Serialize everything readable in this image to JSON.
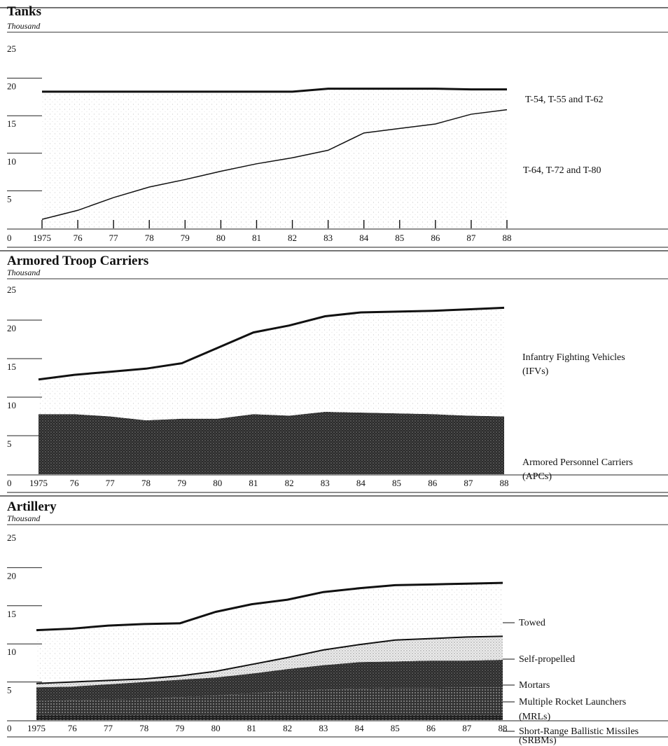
{
  "chart_data": [
    {
      "type": "area",
      "title": "Tanks",
      "unit": "Thousand",
      "x": [
        "1975",
        "76",
        "77",
        "78",
        "79",
        "80",
        "81",
        "82",
        "83",
        "84",
        "85",
        "86",
        "87",
        "88"
      ],
      "y_ticks": [
        "0",
        "5",
        "10",
        "15",
        "20",
        "25"
      ],
      "ylim": [
        0,
        25
      ],
      "series": [
        {
          "name": "T-64, T-72 and T-80",
          "stack_top": [
            1.2,
            2.4,
            4.1,
            5.5,
            6.5,
            7.6,
            8.6,
            9.4,
            10.4,
            12.7,
            13.3,
            13.9,
            15.2,
            15.8
          ]
        },
        {
          "name": "T-54, T-55 and T-62",
          "stack_top": [
            18.2,
            18.2,
            18.2,
            18.2,
            18.2,
            18.2,
            18.2,
            18.2,
            18.6,
            18.6,
            18.6,
            18.6,
            18.5,
            18.5
          ]
        }
      ]
    },
    {
      "type": "area",
      "title": "Armored Troop Carriers",
      "unit": "Thousand",
      "x": [
        "1975",
        "76",
        "77",
        "78",
        "79",
        "80",
        "81",
        "82",
        "83",
        "84",
        "85",
        "86",
        "87",
        "88"
      ],
      "y_ticks": [
        "0",
        "5",
        "10",
        "15",
        "20",
        "25"
      ],
      "ylim": [
        0,
        25
      ],
      "series": [
        {
          "name": "Armored Personnel Carriers (APCs)",
          "stack_top": [
            7.8,
            7.8,
            7.5,
            7.0,
            7.2,
            7.2,
            7.8,
            7.6,
            8.1,
            8.0,
            7.9,
            7.8,
            7.6,
            7.5
          ]
        },
        {
          "name": "Infantry Fighting Vehicles (IFVs)",
          "stack_top": [
            12.3,
            12.9,
            13.3,
            13.7,
            14.4,
            16.4,
            18.4,
            19.3,
            20.5,
            21.0,
            21.1,
            21.2,
            21.4,
            21.6
          ]
        }
      ]
    },
    {
      "type": "area",
      "title": "Artillery",
      "unit": "Thousand",
      "x": [
        "1975",
        "76",
        "77",
        "78",
        "79",
        "80",
        "81",
        "82",
        "83",
        "84",
        "85",
        "86",
        "87",
        "88"
      ],
      "y_ticks": [
        "0",
        "5",
        "10",
        "15",
        "20",
        "25"
      ],
      "ylim": [
        0,
        25
      ],
      "series": [
        {
          "name": "Short-Range Ballistic Missiles (SRBMs)",
          "stack_top": [
            0.7,
            0.7,
            0.7,
            0.7,
            0.7,
            0.7,
            0.7,
            0.7,
            0.7,
            0.7,
            0.7,
            0.7,
            0.7,
            0.7
          ]
        },
        {
          "name": "Multiple Rocket Launchers (MRLs)",
          "stack_top": [
            2.5,
            2.6,
            2.7,
            2.8,
            3.0,
            3.2,
            3.5,
            3.8,
            4.0,
            4.1,
            4.2,
            4.2,
            4.3,
            4.3
          ]
        },
        {
          "name": "Mortars",
          "stack_top": [
            4.3,
            4.4,
            4.7,
            5.0,
            5.3,
            5.6,
            6.1,
            6.7,
            7.2,
            7.6,
            7.7,
            7.8,
            7.8,
            7.9
          ]
        },
        {
          "name": "Self-propelled",
          "stack_top": [
            4.8,
            5.0,
            5.2,
            5.4,
            5.8,
            6.4,
            7.3,
            8.2,
            9.2,
            9.9,
            10.5,
            10.7,
            10.9,
            11.0
          ]
        },
        {
          "name": "Towed",
          "stack_top": [
            11.8,
            12.0,
            12.4,
            12.6,
            12.7,
            14.2,
            15.2,
            15.8,
            16.8,
            17.3,
            17.7,
            17.8,
            17.9,
            18.0
          ]
        }
      ]
    }
  ],
  "labels": {
    "tanks": [
      "T-54, T-55 and T-62",
      "T-64, T-72 and T-80"
    ],
    "atc": [
      "Infantry Fighting Vehicles",
      "(IFVs)",
      "Armored Personnel Carriers",
      "(APCs)"
    ],
    "artillery": [
      "Towed",
      "Self-propelled",
      "Mortars",
      "Multiple Rocket Launchers",
      "(MRLs)",
      "Short-Range Ballistic Missiles",
      "(SRBMs)"
    ]
  }
}
